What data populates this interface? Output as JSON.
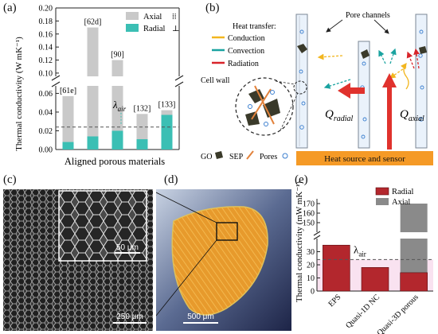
{
  "panel_labels": {
    "a": "(a)",
    "b": "(b)",
    "c": "(c)",
    "d": "(d)",
    "e": "(e)"
  },
  "chart_data": [
    {
      "type": "bar",
      "panel": "a",
      "categories": [
        "[61e]",
        "[62d]",
        "[90]",
        "[132]",
        "[133]"
      ],
      "series": [
        {
          "name": "Radial",
          "values": [
            0.008,
            0.014,
            0.02,
            0.011,
            0.037
          ],
          "color": "#3bbfb4"
        },
        {
          "name": "Axial",
          "values": [
            0.057,
            0.17,
            0.12,
            0.038,
            0.042
          ],
          "color": "#c9c9c9"
        }
      ],
      "legend_symbols": {
        "Axial": "⁞⁞",
        "Radial": "⊥"
      },
      "ylabel": "Thermal conductivity (W mK⁻¹)",
      "xlabel": "Aligned porous materials",
      "yticks_lower": [
        "0.00",
        "0.02",
        "0.04",
        "0.06"
      ],
      "yticks_upper": [
        "0.10",
        "0.12",
        "0.14",
        "0.16",
        "0.18",
        "0.20"
      ],
      "ylim_lower": [
        0,
        0.068
      ],
      "ylim_upper": [
        0.095,
        0.2
      ],
      "reference_line": {
        "label": "λ",
        "sub": "air",
        "value": 0.024
      },
      "legend_position": "top-right"
    },
    {
      "type": "bar",
      "panel": "e",
      "categories": [
        "EPS",
        "Quasi-1D NC",
        "Quasi-3D porous"
      ],
      "series": [
        {
          "name": "Radial",
          "values": [
            35,
            18,
            14
          ],
          "color": "#b3272d"
        },
        {
          "name": "Axial",
          "values": [
            null,
            null,
            170
          ],
          "color": "#8a8a8a"
        }
      ],
      "ylabel": "Thermal conductivity (mW mK⁻¹)",
      "yticks": [
        "0",
        "10",
        "20",
        "30",
        "150",
        "160",
        "170"
      ],
      "ylim_lower": [
        0,
        40
      ],
      "ylim_upper": [
        140,
        175
      ],
      "reference_line": {
        "label": "λ",
        "sub": "air",
        "value": 24
      },
      "legend_position": "top-right"
    }
  ],
  "diagram_b": {
    "heat_transfer_title": "Heat transfer:",
    "legend": [
      {
        "label": "Conduction",
        "color": "#f2b61f"
      },
      {
        "label": "Convection",
        "color": "#1aa3a0"
      },
      {
        "label": "Radiation",
        "color": "#d8242a"
      }
    ],
    "pore_channels": "Pore channels",
    "cell_wall": "Cell wall",
    "q_radial": "Q",
    "q_radial_sub": "radial",
    "q_axial": "Q",
    "q_axial_sub": "axial",
    "materials_legend": {
      "go": "GO",
      "sep": "SEP",
      "pores": "Pores"
    },
    "heat_source": "Heat source and sensor"
  },
  "image_c": {
    "inset_scale": "50 μm",
    "main_scale": "250 μm"
  },
  "image_d": {
    "scale": "500 μm"
  }
}
